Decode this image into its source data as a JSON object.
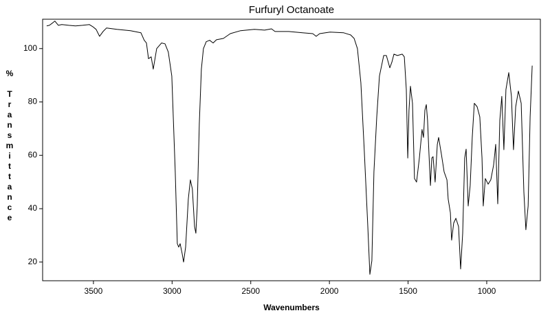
{
  "chart_data": {
    "type": "line",
    "title": "Furfuryl Octanoate",
    "x_label": "Wavenumbers",
    "y_label": "% Transmittance",
    "color": "#000000",
    "xlim": [
      3823,
      659
    ],
    "ylim": [
      13,
      111
    ],
    "xticks": [
      3500,
      3000,
      2500,
      2000,
      1500,
      1000
    ],
    "yticks": [
      20,
      40,
      60,
      80,
      100
    ],
    "x": [
      3797,
      3780,
      3762,
      3745,
      3723,
      3701,
      3657,
      3614,
      3570,
      3526,
      3504,
      3483,
      3461,
      3439,
      3417,
      3351,
      3264,
      3198,
      3177,
      3163,
      3150,
      3133,
      3120,
      3098,
      3067,
      3045,
      3024,
      3002,
      2980,
      2967,
      2958,
      2949,
      2936,
      2927,
      2914,
      2897,
      2884,
      2871,
      2857,
      2849,
      2840,
      2827,
      2814,
      2801,
      2783,
      2761,
      2739,
      2718,
      2674,
      2630,
      2565,
      2477,
      2412,
      2368,
      2346,
      2259,
      2171,
      2106,
      2084,
      2062,
      1996,
      1909,
      1865,
      1843,
      1822,
      1800,
      1778,
      1756,
      1743,
      1730,
      1717,
      1699,
      1682,
      1655,
      1638,
      1616,
      1603,
      1590,
      1568,
      1537,
      1524,
      1511,
      1502,
      1494,
      1485,
      1472,
      1459,
      1446,
      1428,
      1411,
      1402,
      1393,
      1384,
      1376,
      1367,
      1358,
      1349,
      1341,
      1328,
      1314,
      1306,
      1288,
      1271,
      1253,
      1245,
      1231,
      1223,
      1210,
      1196,
      1179,
      1166,
      1153,
      1140,
      1131,
      1118,
      1105,
      1092,
      1079,
      1061,
      1044,
      1030,
      1022,
      1009,
      991,
      974,
      956,
      943,
      930,
      917,
      904,
      891,
      878,
      860,
      843,
      830,
      816,
      799,
      781,
      764,
      751,
      737,
      724,
      711
    ],
    "y": [
      108.5,
      108.7,
      109.5,
      110.3,
      108.7,
      109.0,
      108.7,
      108.5,
      108.7,
      109.0,
      108.2,
      107.2,
      104.6,
      106.4,
      107.7,
      107.2,
      106.7,
      105.9,
      103.1,
      102.1,
      96.2,
      96.9,
      92.3,
      100,
      102.1,
      101.8,
      98.7,
      89.7,
      53.8,
      26.9,
      25.6,
      26.9,
      23.1,
      20.0,
      25.6,
      43.6,
      50.8,
      47.4,
      33.3,
      30.8,
      41.0,
      71.8,
      92.3,
      100,
      102.6,
      103.1,
      102.1,
      103.3,
      103.8,
      105.6,
      106.7,
      107.2,
      106.9,
      107.4,
      106.4,
      106.4,
      105.9,
      105.6,
      104.6,
      105.6,
      106.2,
      105.9,
      105.1,
      103.8,
      100,
      87.2,
      61.5,
      33.3,
      15.4,
      20.5,
      53.8,
      74.4,
      89.7,
      97.4,
      97.4,
      92.8,
      94.9,
      97.9,
      97.4,
      97.9,
      96.9,
      84.6,
      59.0,
      76.9,
      85.9,
      79.5,
      51.3,
      50.0,
      59.0,
      69.7,
      66.7,
      76.9,
      79.0,
      73.1,
      60.3,
      48.7,
      59.0,
      59.5,
      50.0,
      64.1,
      66.7,
      60.3,
      53.8,
      50.8,
      43.6,
      38.5,
      28.2,
      34.6,
      36.4,
      33.3,
      17.4,
      30.8,
      59.0,
      62.3,
      41.0,
      48.7,
      66.7,
      79.5,
      78.2,
      74.4,
      59.0,
      41.0,
      51.3,
      49.2,
      50.8,
      56.4,
      64.1,
      41.8,
      73.1,
      82.1,
      62.1,
      84.6,
      91.0,
      82.1,
      62.1,
      78.2,
      84.1,
      79.5,
      46.2,
      32.1,
      41.0,
      74.4,
      93.6
    ]
  }
}
